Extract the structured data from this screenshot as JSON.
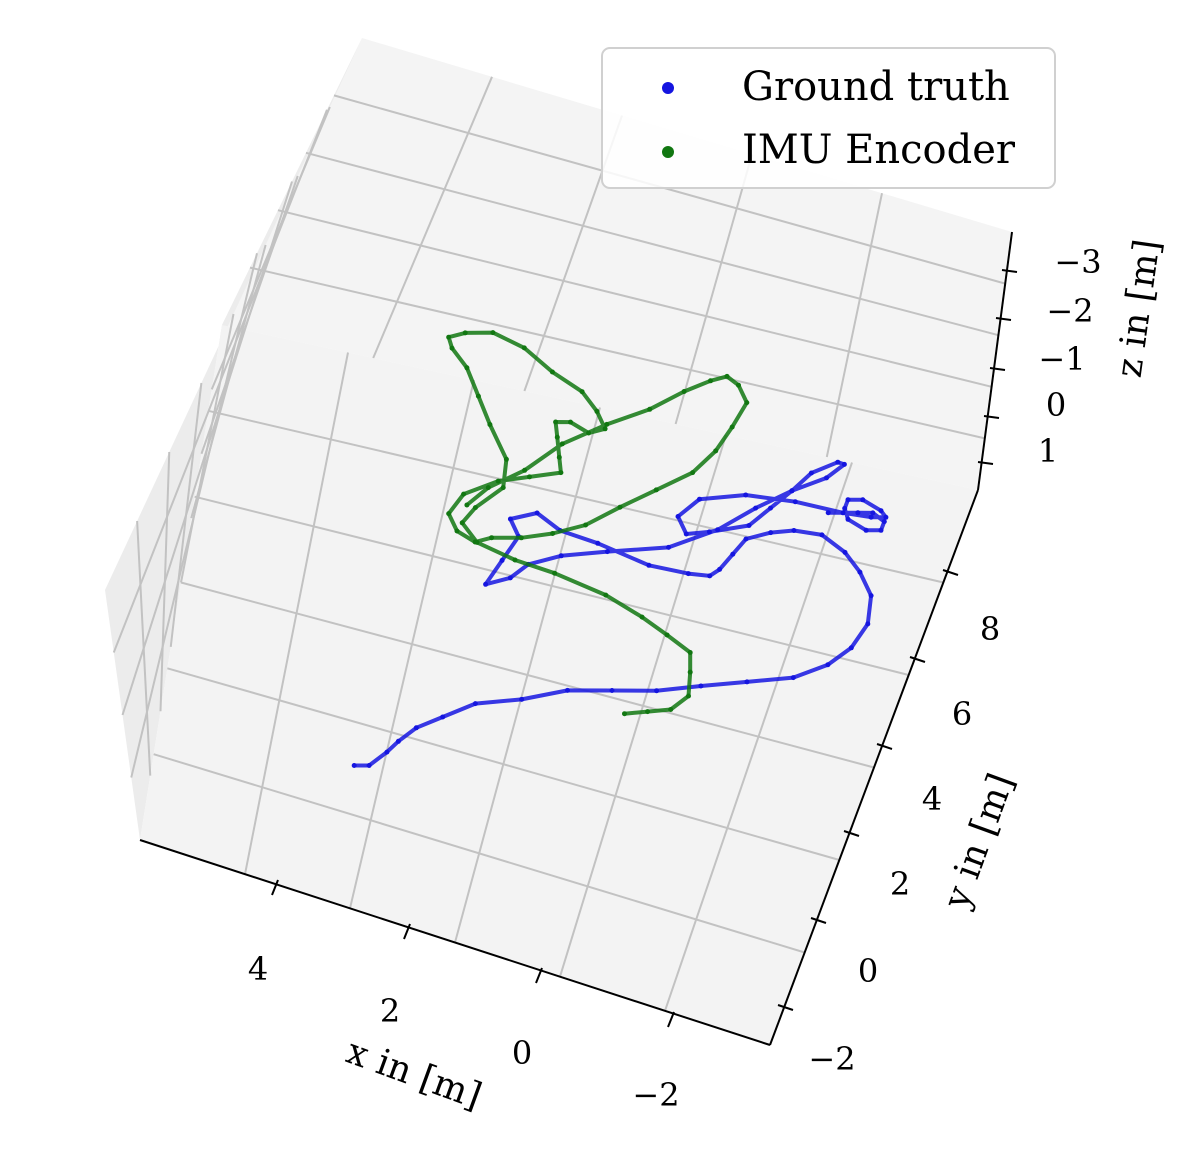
{
  "chart_data": {
    "type": "scatter",
    "projection": "3d",
    "title": "",
    "xlabel": "x in [m]",
    "ylabel": "y in [m]",
    "zlabel": "z in [m]",
    "xlim": [
      -3.5,
      5.5
    ],
    "ylim": [
      -2.5,
      10
    ],
    "zlim": [
      -3.5,
      1.5
    ],
    "x_ticks": [
      "4",
      "2",
      "0",
      "−2"
    ],
    "y_ticks": [
      "8",
      "6",
      "4",
      "2",
      "0",
      "−2"
    ],
    "z_ticks": [
      "−3",
      "−2",
      "−1",
      "0",
      "1"
    ],
    "grid": true,
    "legend_position": "top-right",
    "series": [
      {
        "name": "Ground truth",
        "color": "#1515e0",
        "x": [
          4.2,
          4.0,
          3.8,
          3.7,
          3.5,
          3.2,
          2.8,
          2.2,
          1.6,
          1.0,
          0.4,
          -0.2,
          -0.8,
          -1.4,
          -1.8,
          -2.0,
          -2.1,
          -2.0,
          -1.7,
          -1.4,
          -1.0,
          -0.6,
          -0.3,
          0.0,
          0.1,
          0.2,
          0.3,
          0.6,
          1.2,
          2.0,
          2.6,
          3.0,
          3.3,
          3.1,
          3.2,
          3.3,
          3.0,
          2.8,
          2.4,
          1.8,
          1.0,
          0.4,
          0.0,
          -0.4,
          -0.8,
          -1.0,
          -0.9,
          -0.6,
          -0.4,
          -0.2,
          0.0,
          0.5,
          0.8,
          1.0,
          0.8,
          0.2,
          -0.5,
          -1.2,
          -1.6,
          -1.8,
          -1.7,
          -1.4,
          -1.2,
          -1.2,
          -1.3,
          -1.6,
          -1.8,
          -1.8,
          -1.6,
          -1.4,
          -1.0
        ],
        "y": [
          0.6,
          0.7,
          1.0,
          1.3,
          1.6,
          2.0,
          2.4,
          2.8,
          3.2,
          3.5,
          3.8,
          4.1,
          4.5,
          4.9,
          5.4,
          6.0,
          6.6,
          7.2,
          7.7,
          8.0,
          8.2,
          8.1,
          7.9,
          7.6,
          7.2,
          6.8,
          6.6,
          6.5,
          6.5,
          6.6,
          6.7,
          6.9,
          6.5,
          6.2,
          5.6,
          5.0,
          5.3,
          5.6,
          6.0,
          6.4,
          6.9,
          7.5,
          8.2,
          8.8,
          9.3,
          9.6,
          9.6,
          9.2,
          8.8,
          8.3,
          7.8,
          7.4,
          7.2,
          7.5,
          8.0,
          8.4,
          8.6,
          8.7,
          8.8,
          8.9,
          9.0,
          9.1,
          9.0,
          8.8,
          8.6,
          8.5,
          8.6,
          8.8,
          8.9,
          8.8,
          8.6
        ],
        "z": [
          0.5,
          0.5,
          0.4,
          0.4,
          0.3,
          0.3,
          0.2,
          0.2,
          0.1,
          0.1,
          0.1,
          0.0,
          0.0,
          0.0,
          0.0,
          0.1,
          0.1,
          0.1,
          0.2,
          0.2,
          0.2,
          0.2,
          0.2,
          0.2,
          0.2,
          0.2,
          0.2,
          0.2,
          0.3,
          0.3,
          0.4,
          0.4,
          0.3,
          0.3,
          0.3,
          0.3,
          0.3,
          0.2,
          0.2,
          0.2,
          0.2,
          0.1,
          0.1,
          0.1,
          0.1,
          0.0,
          0.0,
          0.0,
          0.1,
          0.1,
          0.1,
          0.1,
          0.1,
          0.1,
          0.1,
          0.1,
          0.1,
          0.1,
          0.1,
          0.1,
          0.1,
          0.1,
          0.1,
          0.1,
          0.1,
          0.1,
          0.1,
          0.1,
          0.1,
          0.1,
          0.1
        ]
      },
      {
        "name": "IMU Encoder",
        "color": "#117711",
        "x": [
          0.8,
          0.5,
          0.2,
          0.0,
          0.1,
          0.2,
          0.6,
          1.0,
          1.6,
          2.4,
          3.0,
          3.6,
          3.9,
          3.8,
          3.5,
          3.6,
          4.0,
          4.3,
          4.6,
          4.9,
          5.0,
          4.8,
          4.4,
          3.9,
          3.4,
          2.9,
          2.6,
          2.4,
          2.6,
          2.9,
          3.1,
          3.0,
          2.9,
          2.8,
          3.2,
          3.6,
          4.0,
          4.1,
          3.9,
          3.6,
          3.4,
          3.0,
          2.6,
          2.2,
          1.8,
          1.4,
          1.0,
          0.8,
          0.7,
          0.6,
          0.8,
          1.0,
          1.2,
          1.5,
          1.9,
          2.4,
          2.9,
          3.3,
          3.7,
          3.9
        ],
        "y": [
          3.4,
          3.6,
          3.8,
          4.1,
          4.6,
          5.0,
          5.2,
          5.3,
          5.5,
          5.6,
          5.6,
          5.7,
          6.0,
          6.4,
          6.9,
          7.5,
          8.1,
          8.6,
          9.1,
          9.4,
          9.6,
          9.8,
          9.9,
          9.8,
          9.5,
          9.3,
          9.0,
          8.7,
          8.5,
          8.6,
          8.5,
          8.2,
          7.9,
          7.6,
          7.3,
          7.0,
          6.5,
          6.0,
          5.7,
          5.6,
          5.8,
          6.0,
          6.3,
          6.7,
          7.2,
          7.8,
          8.4,
          9.0,
          9.6,
          10.1,
          10.4,
          10.5,
          10.3,
          9.9,
          9.4,
          8.8,
          8.1,
          7.4,
          6.8,
          6.3
        ],
        "z": [
          0.4,
          0.4,
          0.4,
          0.3,
          0.3,
          0.3,
          0.3,
          0.2,
          0.2,
          0.2,
          0.2,
          0.2,
          0.2,
          0.2,
          0.1,
          0.1,
          0.1,
          0.1,
          0.1,
          0.1,
          0.1,
          0.1,
          0.0,
          0.0,
          0.0,
          0.0,
          0.0,
          0.0,
          0.0,
          0.0,
          0.0,
          0.0,
          0.1,
          0.1,
          0.1,
          0.1,
          0.1,
          0.1,
          0.1,
          0.1,
          0.1,
          0.1,
          0.1,
          0.1,
          0.0,
          0.0,
          0.0,
          0.0,
          0.0,
          -0.1,
          -0.1,
          -0.1,
          -0.1,
          -0.1,
          0.0,
          0.0,
          0.0,
          0.1,
          0.1,
          0.1
        ]
      }
    ]
  }
}
